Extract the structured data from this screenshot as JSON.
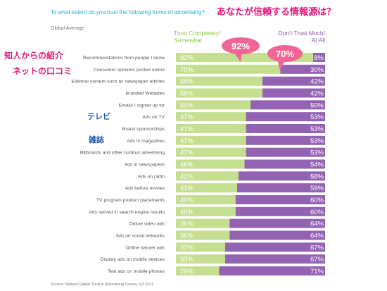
{
  "title": "To what extent do you trust the following forms of advertising?",
  "subtitle": "Global Average",
  "jp_title": "あなたが信頼する情報源は？",
  "legend": {
    "trust": [
      "Trust Completely/",
      "Somewhat"
    ],
    "distrust": [
      "Don't Trust Much/",
      "At All"
    ]
  },
  "annotations": {
    "jp_recommendation_1": "知人からの紹介",
    "jp_recommendation_2": "ネットの口コミ",
    "jp_tv": "テレビ",
    "jp_magazine": "雑誌",
    "bubble_92": "92%",
    "bubble_70": "70%"
  },
  "source": "Source: Nielsen Global Trust in Advertising Survey, Q3 2011",
  "colors": {
    "trust": "#c4df8f",
    "distrust": "#9462b3",
    "bubble": "#f06595",
    "title": "#2ba6cf"
  },
  "chart_data": {
    "type": "bar",
    "orientation": "horizontal",
    "stacked": true,
    "categories": [
      "Recommendations from people I know",
      "Consumer opinions posted online",
      "Editorial content such as newspaper articles",
      "Branded Websites",
      "Emails I signed up for",
      "Ads on TV",
      "Brand sponsorships",
      "Ads in magazines",
      "Billboards and other outdoor advertising",
      "Ads in newspapers",
      "Ads on radio",
      "Ads before movies",
      "TV program product placements",
      "Ads served in search engine results",
      "Online video ads",
      "Ads on social networks",
      "Online banner ads",
      "Display ads on mobile devices",
      "Text ads on mobile phones"
    ],
    "series": [
      {
        "name": "Trust Completely/Somewhat",
        "values": [
          92,
          70,
          58,
          58,
          50,
          47,
          47,
          47,
          47,
          46,
          42,
          41,
          40,
          40,
          36,
          36,
          33,
          33,
          29
        ]
      },
      {
        "name": "Don't Trust Much/At All",
        "values": [
          8,
          30,
          42,
          42,
          50,
          53,
          53,
          53,
          53,
          54,
          58,
          59,
          60,
          60,
          64,
          64,
          67,
          67,
          71
        ]
      }
    ],
    "xlim": [
      0,
      100
    ],
    "value_format": "percent",
    "grid": false,
    "legend": "top"
  }
}
